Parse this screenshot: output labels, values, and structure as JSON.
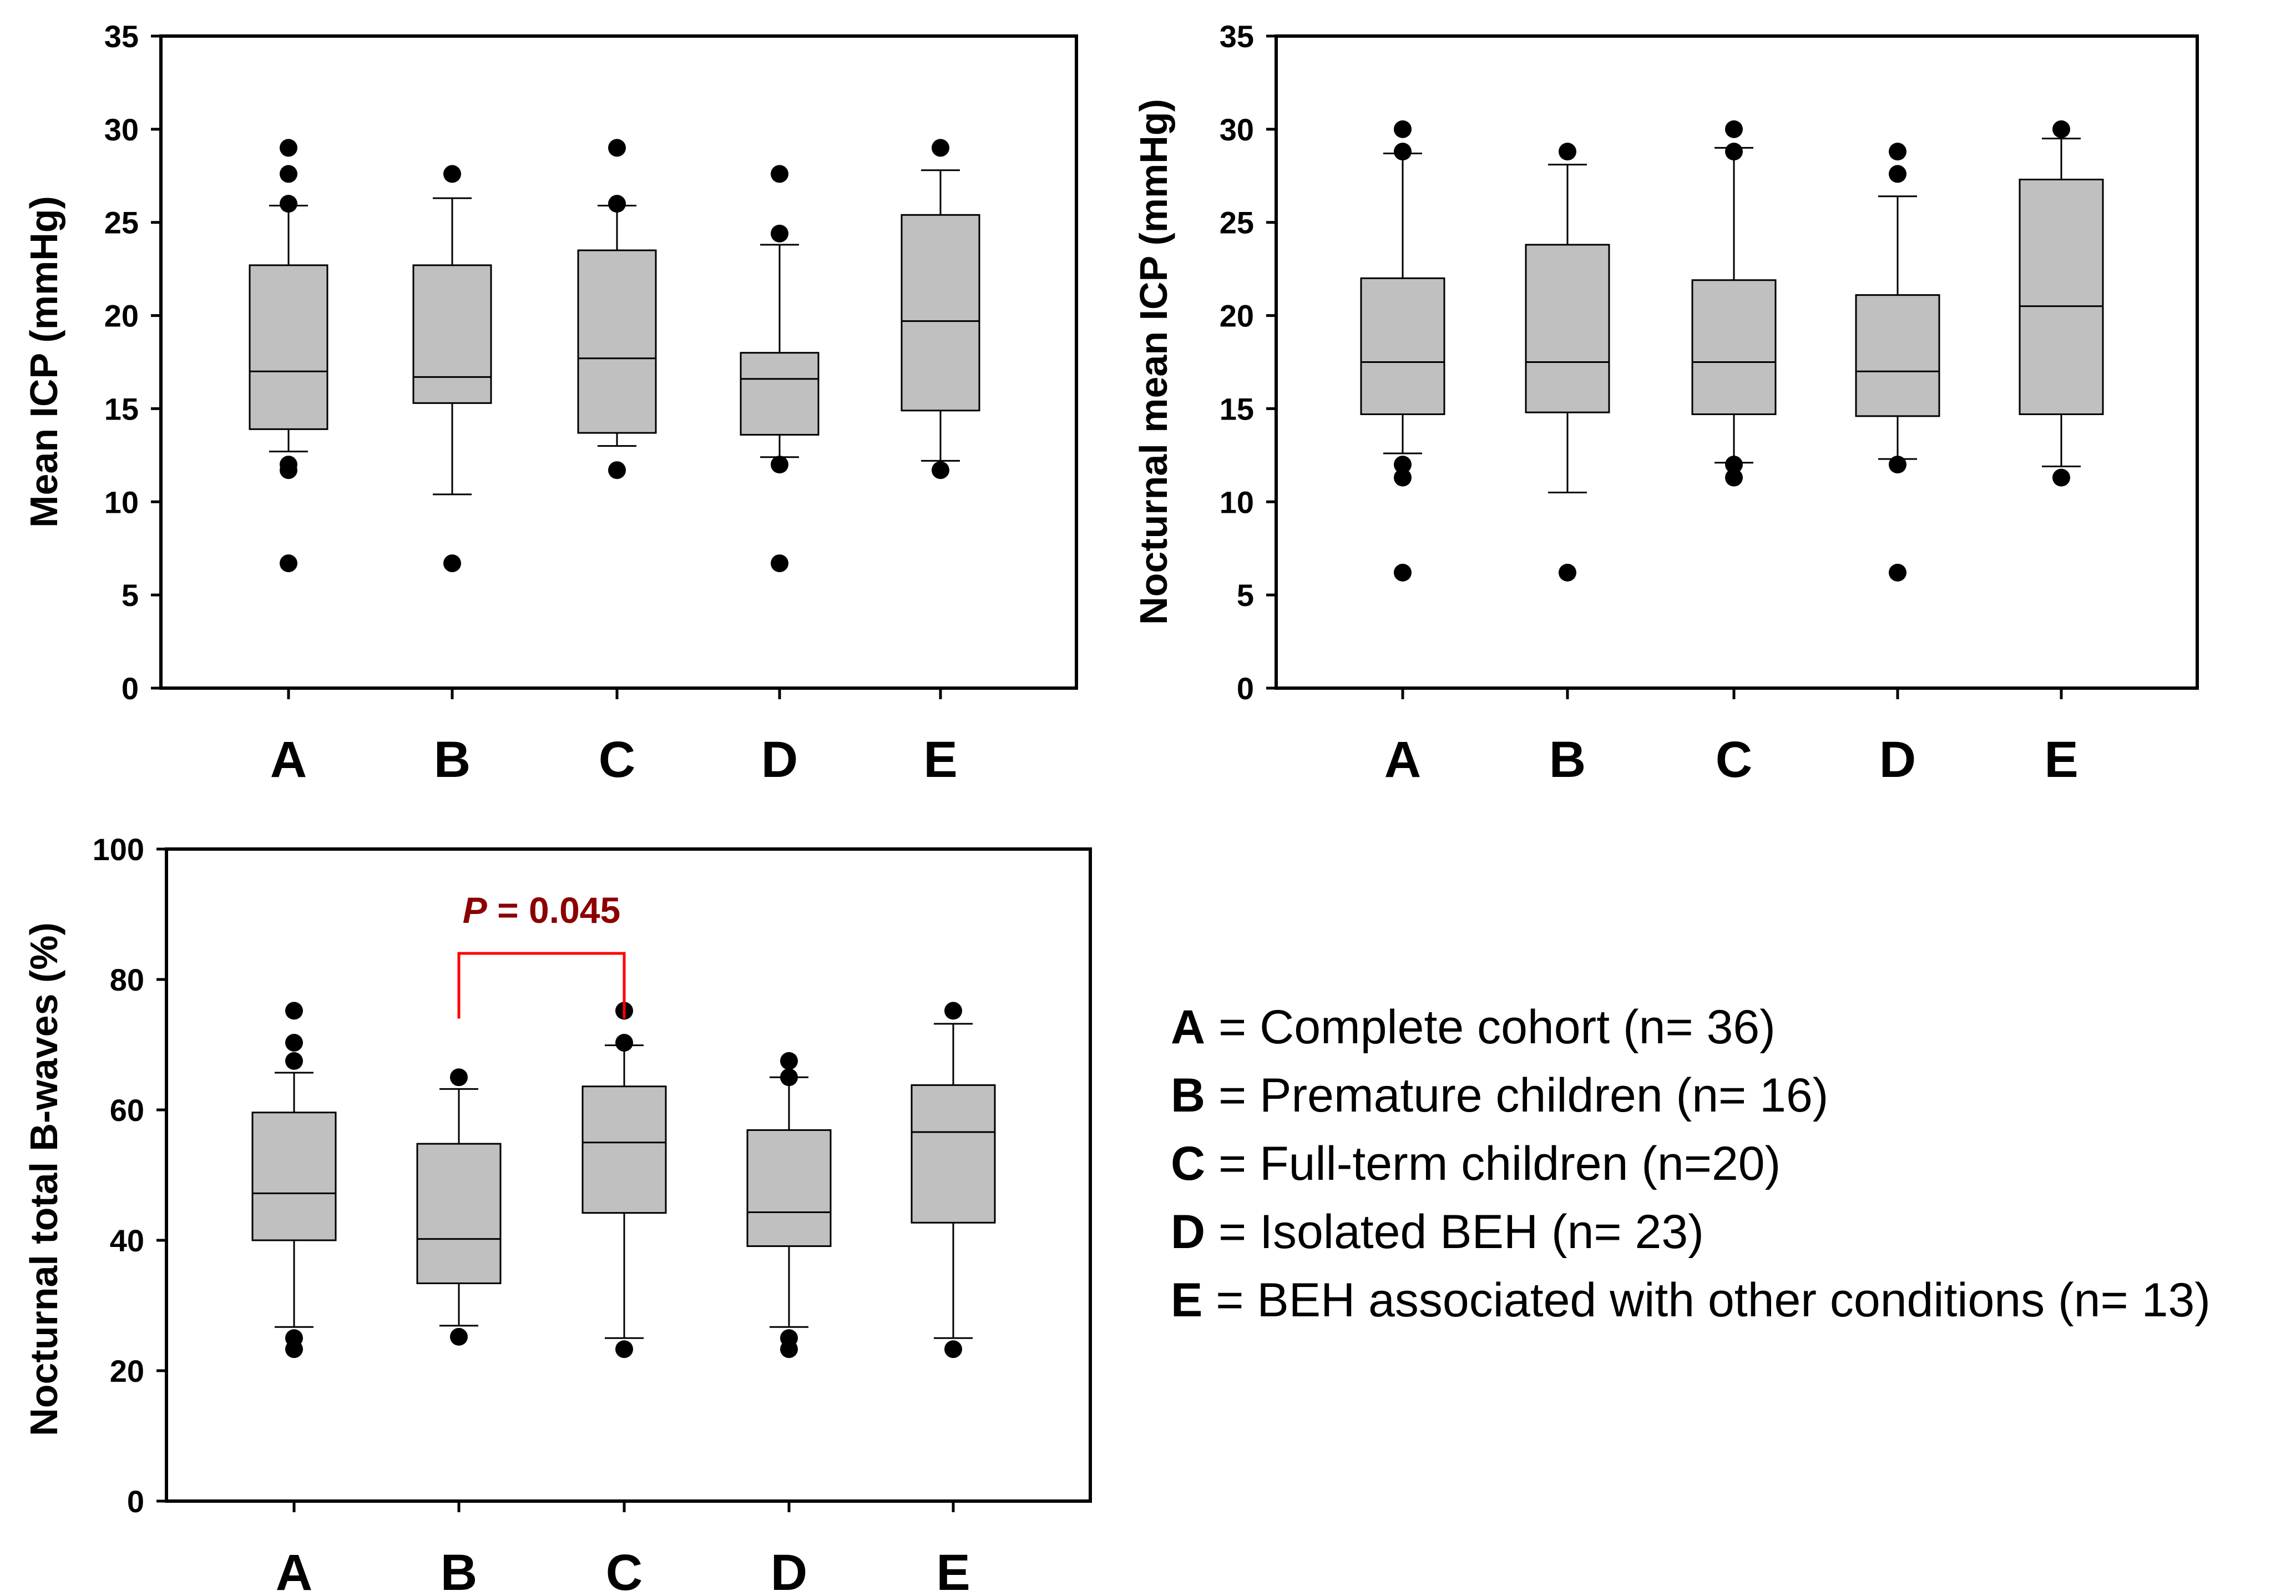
{
  "chart_data": [
    {
      "type": "box",
      "id": "top-left",
      "ylabel": "Mean ICP  (mmHg)",
      "ylim": [
        0,
        35
      ],
      "yticks": [
        "0",
        "5",
        "10",
        "15",
        "20",
        "25",
        "30",
        "35"
      ],
      "categories": [
        "A",
        "B",
        "C",
        "D",
        "E"
      ],
      "boxes": [
        {
          "category": "A",
          "whisker_low": 12.7,
          "q1": 13.9,
          "median": 17.0,
          "q3": 22.7,
          "whisker_high": 25.9,
          "outliers": [
            6.7,
            11.7,
            12.0,
            26.0,
            27.6,
            29.0
          ]
        },
        {
          "category": "B",
          "whisker_low": 10.4,
          "q1": 15.3,
          "median": 16.7,
          "q3": 22.7,
          "whisker_high": 26.3,
          "outliers": [
            6.7,
            27.6
          ]
        },
        {
          "category": "C",
          "whisker_low": 13.0,
          "q1": 13.7,
          "median": 17.7,
          "q3": 23.5,
          "whisker_high": 25.9,
          "outliers": [
            11.7,
            26.0,
            29.0
          ]
        },
        {
          "category": "D",
          "whisker_low": 12.4,
          "q1": 13.6,
          "median": 16.6,
          "q3": 18.0,
          "whisker_high": 23.8,
          "outliers": [
            6.7,
            12.0,
            24.4,
            27.6
          ]
        },
        {
          "category": "E",
          "whisker_low": 12.2,
          "q1": 14.9,
          "median": 19.7,
          "q3": 25.4,
          "whisker_high": 27.8,
          "outliers": [
            11.7,
            29.0
          ]
        }
      ]
    },
    {
      "type": "box",
      "id": "top-right",
      "ylabel": "Nocturnal mean ICP  (mmHg)",
      "ylim": [
        0,
        35
      ],
      "yticks": [
        "0",
        "5",
        "10",
        "15",
        "20",
        "25",
        "30",
        "35"
      ],
      "categories": [
        "A",
        "B",
        "C",
        "D",
        "E"
      ],
      "boxes": [
        {
          "category": "A",
          "whisker_low": 12.6,
          "q1": 14.7,
          "median": 17.5,
          "q3": 22.0,
          "whisker_high": 28.7,
          "outliers": [
            6.2,
            11.3,
            12.0,
            28.8,
            30.0
          ]
        },
        {
          "category": "B",
          "whisker_low": 10.5,
          "q1": 14.8,
          "median": 17.5,
          "q3": 23.8,
          "whisker_high": 28.1,
          "outliers": [
            6.2,
            28.8
          ]
        },
        {
          "category": "C",
          "whisker_low": 12.1,
          "q1": 14.7,
          "median": 17.5,
          "q3": 21.9,
          "whisker_high": 29.0,
          "outliers": [
            11.3,
            12.0,
            28.8,
            30.0
          ]
        },
        {
          "category": "D",
          "whisker_low": 12.3,
          "q1": 14.6,
          "median": 17.0,
          "q3": 21.1,
          "whisker_high": 26.4,
          "outliers": [
            6.2,
            12.0,
            27.6,
            28.8
          ]
        },
        {
          "category": "E",
          "whisker_low": 11.9,
          "q1": 14.7,
          "median": 20.5,
          "q3": 27.3,
          "whisker_high": 29.5,
          "outliers": [
            11.3,
            30.0
          ]
        }
      ]
    },
    {
      "type": "box",
      "id": "bottom-left",
      "ylabel": "Nocturnal total B-waves  (%)",
      "ylim": [
        0,
        100
      ],
      "yticks": [
        "0",
        "20",
        "40",
        "60",
        "80",
        "100"
      ],
      "categories": [
        "A",
        "B",
        "C",
        "D",
        "E"
      ],
      "boxes": [
        {
          "category": "A",
          "whisker_low": 26.7,
          "q1": 40.0,
          "median": 47.2,
          "q3": 59.6,
          "whisker_high": 65.7,
          "outliers": [
            23.3,
            25.0,
            67.5,
            70.3,
            75.2
          ]
        },
        {
          "category": "B",
          "whisker_low": 26.9,
          "q1": 33.4,
          "median": 40.2,
          "q3": 54.8,
          "whisker_high": 63.2,
          "outliers": [
            25.2,
            65.0
          ]
        },
        {
          "category": "C",
          "whisker_low": 25.0,
          "q1": 44.2,
          "median": 55.0,
          "q3": 63.6,
          "whisker_high": 69.9,
          "outliers": [
            23.3,
            70.3,
            75.2
          ]
        },
        {
          "category": "D",
          "whisker_low": 26.7,
          "q1": 39.1,
          "median": 44.3,
          "q3": 56.9,
          "whisker_high": 65.0,
          "outliers": [
            23.3,
            25.0,
            65.0,
            67.5
          ]
        },
        {
          "category": "E",
          "whisker_low": 25.0,
          "q1": 42.7,
          "median": 56.6,
          "q3": 63.8,
          "whisker_high": 73.2,
          "outliers": [
            23.3,
            75.2
          ]
        }
      ],
      "annotation": {
        "label_italic": "P",
        "label_rest": " = 0.045",
        "from": "B",
        "to": "C",
        "bracket_y": 84,
        "bracket_bottom": 74
      }
    }
  ],
  "legend": [
    {
      "key": "A",
      "text": " = Complete cohort (n= 36)"
    },
    {
      "key": "B",
      "text": " = Premature children (n= 16)"
    },
    {
      "key": "C",
      "text": " = Full-term children (n=20)"
    },
    {
      "key": "D",
      "text": " = Isolated BEH (n= 23)"
    },
    {
      "key": "E",
      "text": " = BEH associated with other conditions (n= 13)"
    }
  ]
}
